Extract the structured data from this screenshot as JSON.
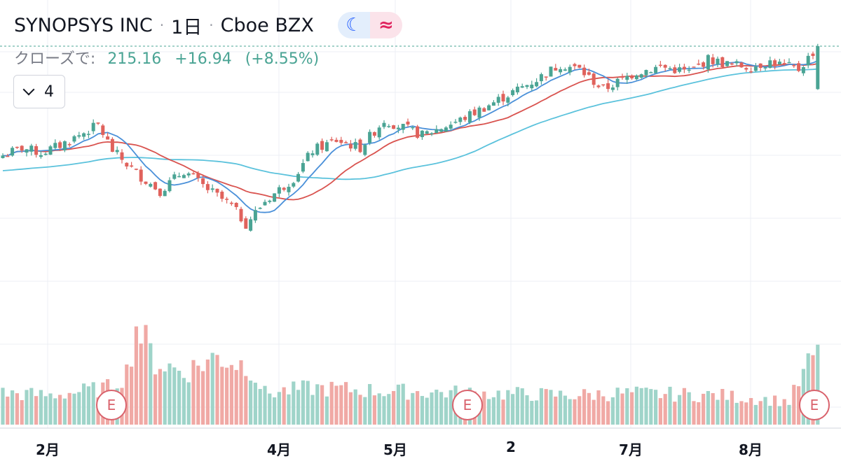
{
  "header": {
    "symbol": "SYNOPSYS INC",
    "interval": "1日",
    "exchange": "Cboe BZX",
    "moon_icon": "☾",
    "wave_icon": "≈"
  },
  "ohlc": {
    "label": "クローズで:",
    "close": "215.16",
    "change": "+16.94",
    "change_pct": "(+8.55%)"
  },
  "indicators": {
    "count": "4"
  },
  "earnings": [
    "E",
    "E",
    "E"
  ],
  "colors": {
    "up": "#4aa494",
    "down": "#e0625c",
    "ma_fast": "#4a90d9",
    "ma_mid": "#d9534f",
    "ma_slow": "#5bc2dc"
  },
  "chart_data": {
    "type": "candlestick",
    "x_ticks": [
      "2月",
      "4月",
      "5月",
      "2",
      "7月",
      "8月"
    ],
    "grid": true,
    "last_price": 215.16,
    "anchors": [
      [
        0,
        172
      ],
      [
        4,
        175
      ],
      [
        8,
        173
      ],
      [
        12,
        176
      ],
      [
        16,
        180
      ],
      [
        20,
        184
      ],
      [
        23,
        174
      ],
      [
        28,
        165
      ],
      [
        33,
        158
      ],
      [
        38,
        166
      ],
      [
        42,
        160
      ],
      [
        48,
        152
      ],
      [
        51,
        145
      ],
      [
        55,
        154
      ],
      [
        61,
        163
      ],
      [
        65,
        174
      ],
      [
        70,
        178
      ],
      [
        75,
        175
      ],
      [
        80,
        186
      ],
      [
        88,
        180
      ],
      [
        96,
        186
      ],
      [
        104,
        194
      ],
      [
        112,
        202
      ],
      [
        117,
        208
      ],
      [
        121,
        206
      ],
      [
        126,
        198
      ],
      [
        133,
        205
      ],
      [
        138,
        207
      ],
      [
        144,
        205
      ],
      [
        148,
        210
      ],
      [
        152,
        208
      ],
      [
        157,
        207
      ],
      [
        161,
        209
      ],
      [
        167,
        206
      ],
      [
        171,
        215
      ]
    ],
    "volume_anchors": [
      [
        0,
        0.3
      ],
      [
        10,
        0.28
      ],
      [
        22,
        0.35
      ],
      [
        26,
        0.5
      ],
      [
        28,
        0.95
      ],
      [
        32,
        0.6
      ],
      [
        38,
        0.5
      ],
      [
        45,
        0.65
      ],
      [
        52,
        0.55
      ],
      [
        55,
        0.3
      ],
      [
        65,
        0.35
      ],
      [
        80,
        0.32
      ],
      [
        100,
        0.3
      ],
      [
        120,
        0.28
      ],
      [
        130,
        0.3
      ],
      [
        150,
        0.28
      ],
      [
        165,
        0.22
      ],
      [
        170,
        0.65
      ]
    ]
  }
}
